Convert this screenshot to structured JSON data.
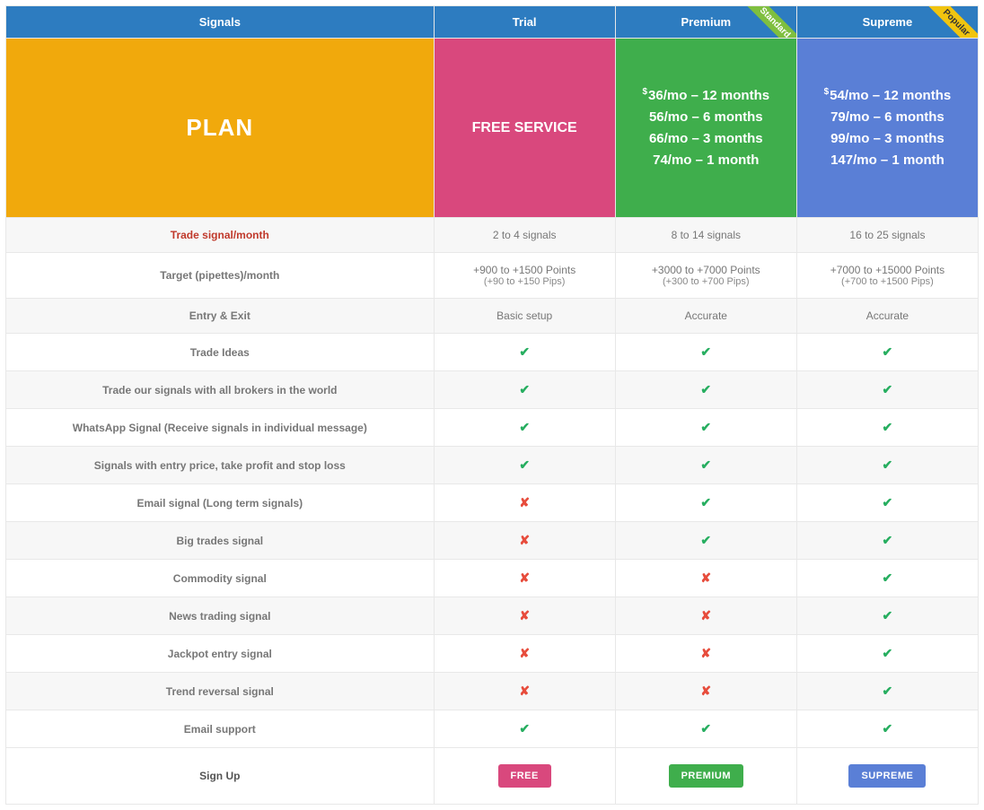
{
  "colors": {
    "header_bg": "#2d7cc0",
    "plan_bg": "#f1a90c",
    "trial_bg": "#d9487d",
    "premium_bg": "#3fae4c",
    "supreme_bg": "#5a7fd6",
    "btn_free": "#d9487d",
    "btn_premium": "#3fae4c",
    "btn_supreme": "#5a7fd6",
    "ribbon_standard": "#7fbf3f",
    "ribbon_popular": "#f1c40f"
  },
  "header": {
    "signals": "Signals",
    "trial": "Trial",
    "premium": "Premium",
    "supreme": "Supreme",
    "ribbon_standard": "Standard",
    "ribbon_popular": "Popular"
  },
  "plan": {
    "label": "PLAN",
    "trial": "FREE SERVICE",
    "premium": [
      "36/mo – 12 months",
      "56/mo – 6 months",
      "66/mo – 3 months",
      "74/mo – 1 month"
    ],
    "supreme": [
      "54/mo – 12 months",
      "79/mo – 6 months",
      "99/mo – 3 months",
      "147/mo – 1 month"
    ]
  },
  "rows": [
    {
      "label": "Trade signal/month",
      "hl": true,
      "t": "2 to 4 signals",
      "p": "8 to 14 signals",
      "s": "16 to 25 signals"
    },
    {
      "label": "Target (pipettes)/month",
      "t": "+900 to +1500 Points",
      "t2": "(+90 to +150 Pips)",
      "p": "+3000 to +7000 Points",
      "p2": "(+300 to +700 Pips)",
      "s": "+7000 to +15000 Points",
      "s2": "(+700 to +1500 Pips)"
    },
    {
      "label": "Entry & Exit",
      "t": "Basic setup",
      "p": "Accurate",
      "s": "Accurate"
    },
    {
      "label": "Trade Ideas",
      "t": "y",
      "p": "y",
      "s": "y"
    },
    {
      "label": "Trade our signals with all brokers in the world",
      "t": "y",
      "p": "y",
      "s": "y"
    },
    {
      "label": "WhatsApp Signal (Receive signals in individual message)",
      "t": "y",
      "p": "y",
      "s": "y"
    },
    {
      "label": "Signals with entry price, take profit and stop loss",
      "t": "y",
      "p": "y",
      "s": "y"
    },
    {
      "label": "Email signal (Long term signals)",
      "t": "n",
      "p": "y",
      "s": "y"
    },
    {
      "label": "Big trades signal",
      "t": "n",
      "p": "y",
      "s": "y"
    },
    {
      "label": "Commodity signal",
      "t": "n",
      "p": "n",
      "s": "y"
    },
    {
      "label": "News trading signal",
      "t": "n",
      "p": "n",
      "s": "y"
    },
    {
      "label": "Jackpot entry signal",
      "t": "n",
      "p": "n",
      "s": "y"
    },
    {
      "label": "Trend reversal signal",
      "t": "n",
      "p": "n",
      "s": "y"
    },
    {
      "label": "Email support",
      "t": "y",
      "p": "y",
      "s": "y"
    }
  ],
  "signup": {
    "label": "Sign Up",
    "free": "FREE",
    "premium": "PREMIUM",
    "supreme": "SUPREME"
  }
}
